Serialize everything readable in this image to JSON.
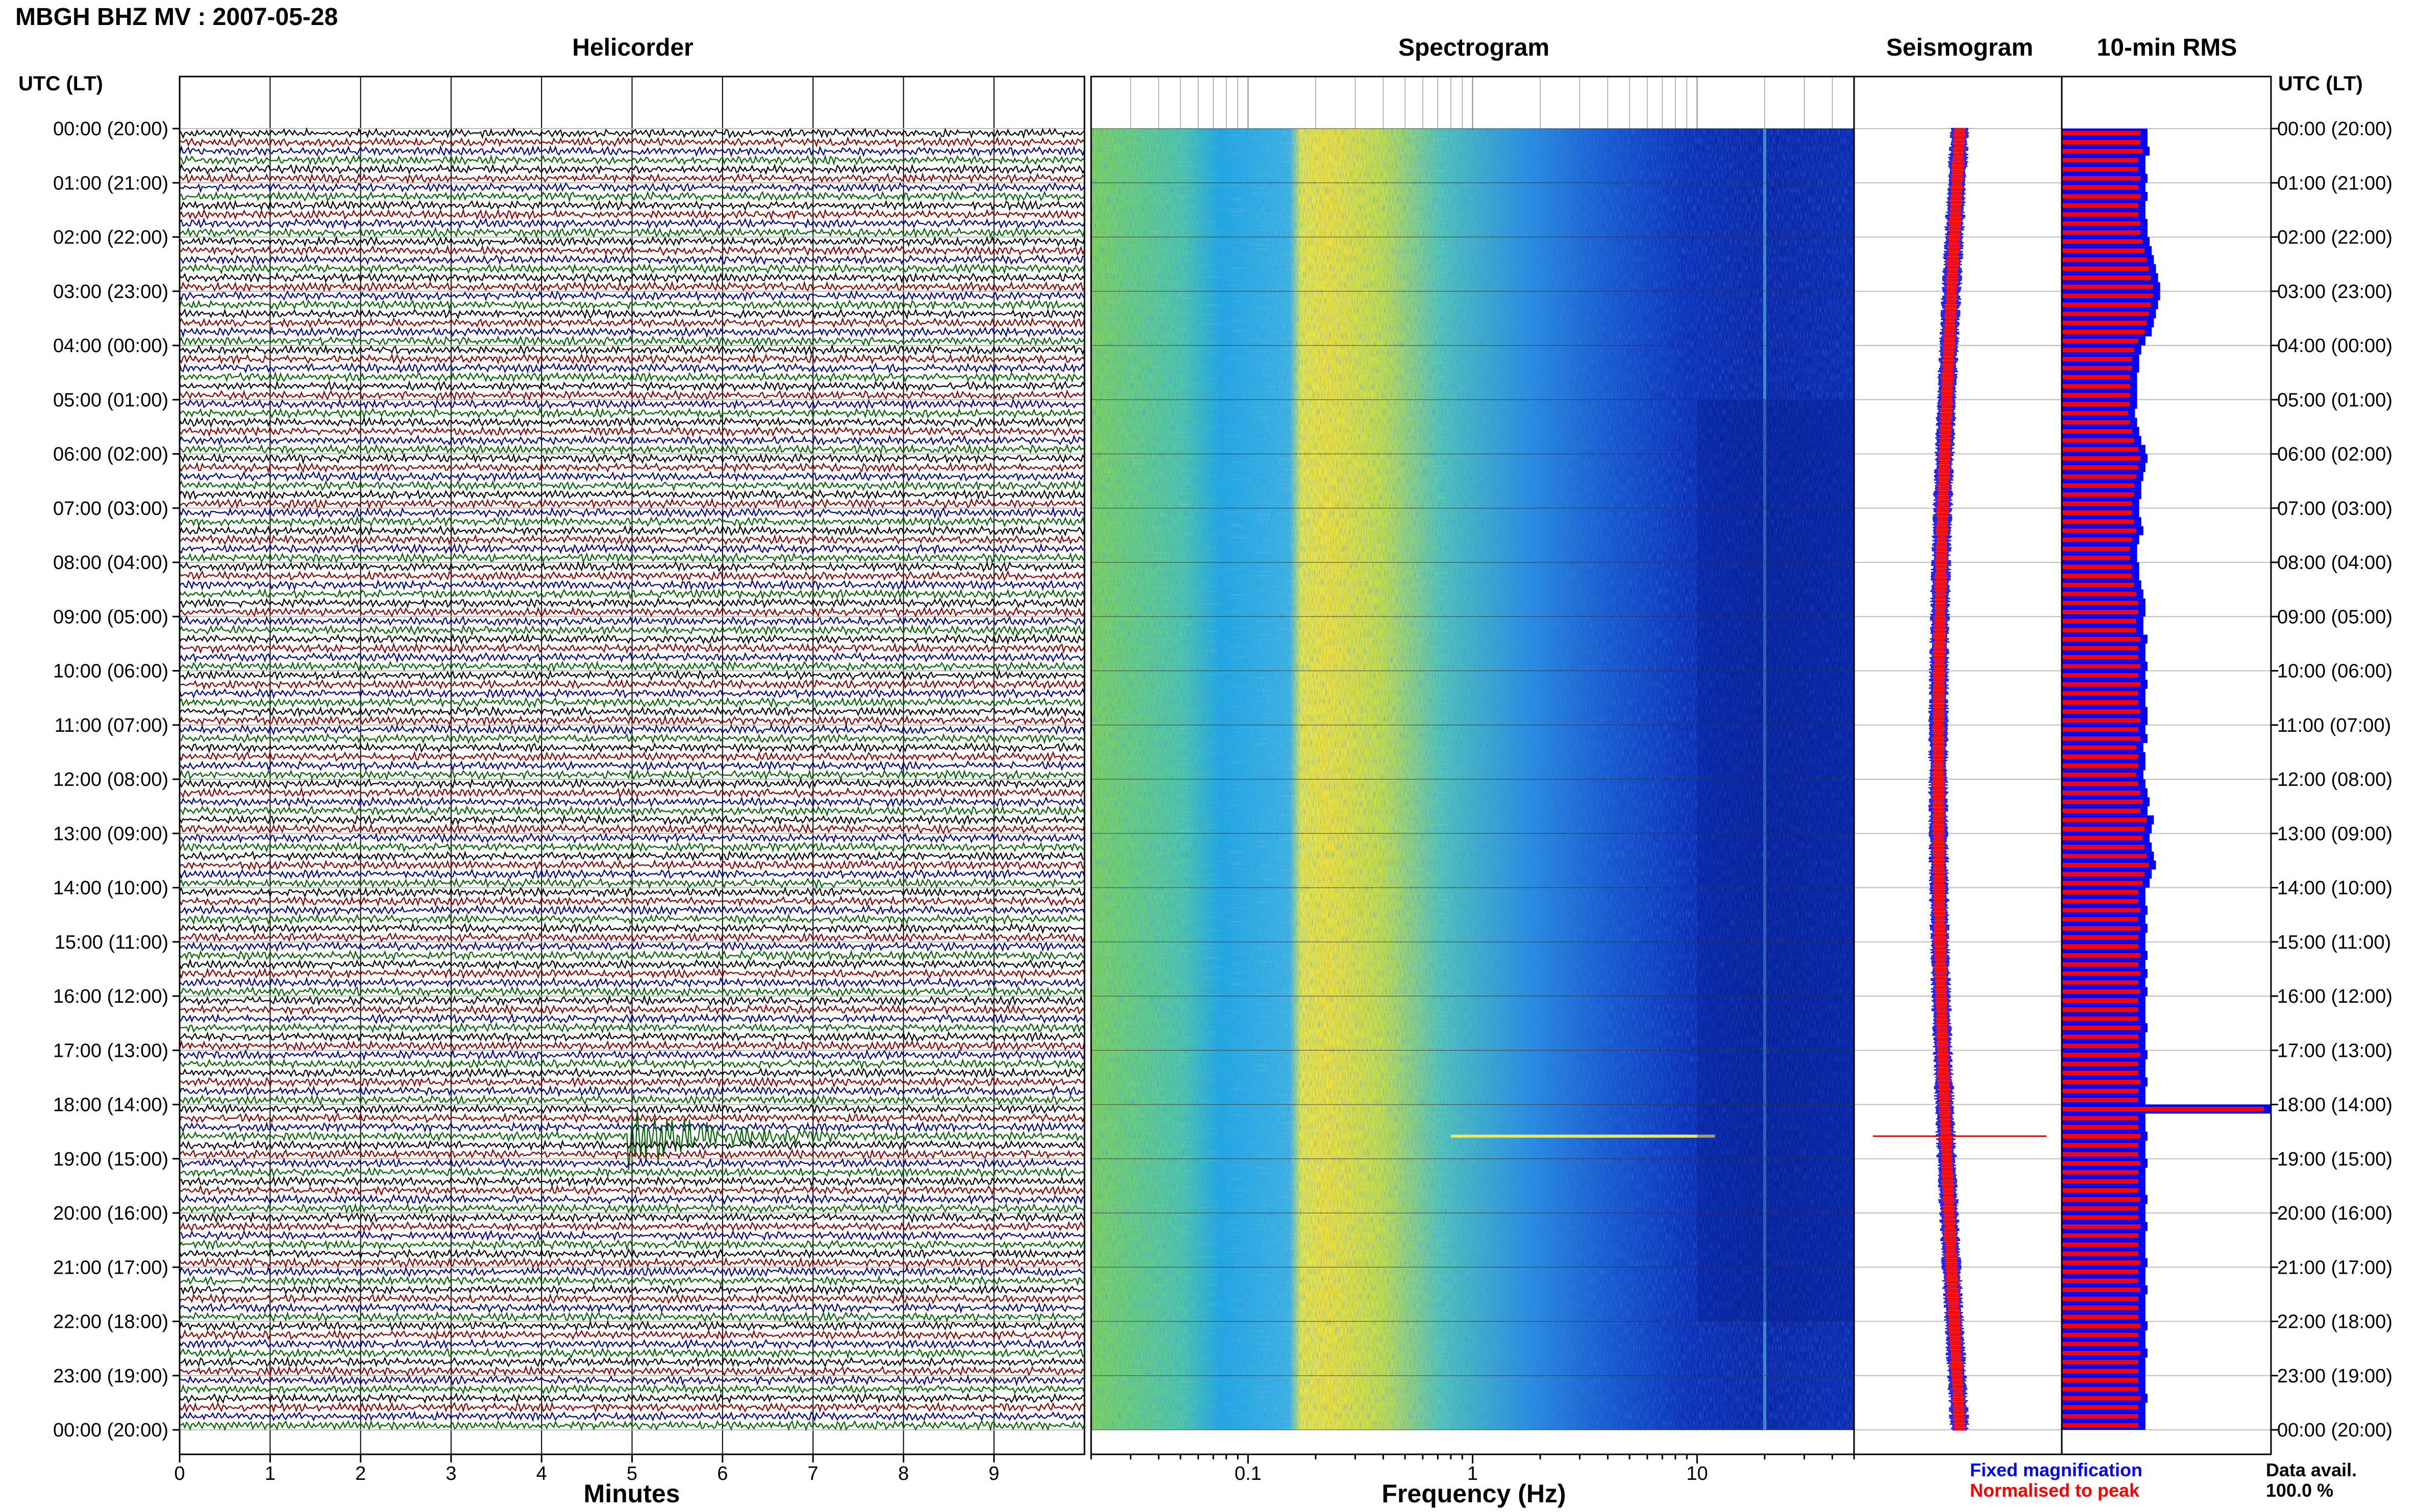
{
  "header": {
    "title": "MBGH BHZ MV : 2007-05-28",
    "utc_label_left": "UTC (LT)",
    "utc_label_right": "UTC (LT)"
  },
  "panels": {
    "helicorder": "Helicorder",
    "spectrogram": "Spectrogram",
    "seismogram": "Seismogram",
    "rms": "10-min RMS"
  },
  "footer": {
    "minutes_label": "Minutes",
    "frequency_label": "Frequency (Hz)",
    "legend_fixed": "Fixed magnification",
    "legend_normalised": "Normalised to peak",
    "data_avail_label": "Data avail.",
    "data_avail_value": "100.0 %"
  },
  "colors": {
    "trace_colors": [
      "#000000",
      "#8b0000",
      "#00008b",
      "#006400"
    ],
    "fixed_magnification": "#0000ff",
    "normalised_to_peak": "#ff0000"
  },
  "chart_data": [
    {
      "type": "line",
      "panel": "helicorder",
      "xlabel": "Minutes",
      "x_ticks": [
        "0",
        "1",
        "2",
        "3",
        "4",
        "5",
        "6",
        "7",
        "8",
        "9"
      ],
      "xlim": [
        0,
        10
      ],
      "time_labels": [
        "00:00 (20:00)",
        "01:00 (21:00)",
        "02:00 (22:00)",
        "03:00 (23:00)",
        "04:00 (00:00)",
        "05:00 (01:00)",
        "06:00 (02:00)",
        "07:00 (03:00)",
        "08:00 (04:00)",
        "09:00 (05:00)",
        "10:00 (06:00)",
        "11:00 (07:00)",
        "12:00 (08:00)",
        "13:00 (09:00)",
        "14:00 (10:00)",
        "15:00 (11:00)",
        "16:00 (12:00)",
        "17:00 (13:00)",
        "18:00 (14:00)",
        "19:00 (15:00)",
        "20:00 (16:00)",
        "21:00 (17:00)",
        "22:00 (18:00)",
        "23:00 (19:00)",
        "00:00 (20:00)"
      ],
      "traces_per_hour": 6,
      "event": {
        "hour": 18,
        "trace": 3,
        "start_minute": 4.95,
        "end_minute": 7.2
      }
    },
    {
      "type": "heatmap",
      "panel": "spectrogram",
      "xlabel": "Frequency (Hz)",
      "x_scale": "log",
      "x_ticks": [
        "0.1",
        "1",
        "10"
      ],
      "xlim": [
        0.02,
        50
      ]
    },
    {
      "type": "line",
      "panel": "seismogram"
    },
    {
      "type": "bar",
      "panel": "rms",
      "fixed_magnification": [
        0.41,
        0.41,
        0.42,
        0.4,
        0.4,
        0.41,
        0.4,
        0.41,
        0.4,
        0.4,
        0.41,
        0.41,
        0.42,
        0.43,
        0.44,
        0.45,
        0.46,
        0.47,
        0.47,
        0.46,
        0.45,
        0.44,
        0.43,
        0.4,
        0.38,
        0.37,
        0.37,
        0.36,
        0.36,
        0.36,
        0.36,
        0.35,
        0.36,
        0.37,
        0.38,
        0.4,
        0.41,
        0.4,
        0.39,
        0.38,
        0.38,
        0.37,
        0.37,
        0.38,
        0.39,
        0.37,
        0.36,
        0.36,
        0.37,
        0.37,
        0.38,
        0.39,
        0.4,
        0.4,
        0.39,
        0.39,
        0.41,
        0.4,
        0.4,
        0.41,
        0.4,
        0.41,
        0.4,
        0.4,
        0.41,
        0.41,
        0.4,
        0.41,
        0.39,
        0.4,
        0.4,
        0.39,
        0.4,
        0.41,
        0.42,
        0.41,
        0.44,
        0.43,
        0.42,
        0.43,
        0.44,
        0.45,
        0.43,
        0.42,
        0.4,
        0.4,
        0.41,
        0.4,
        0.41,
        0.4,
        0.4,
        0.41,
        0.4,
        0.41,
        0.4,
        0.41,
        0.4,
        0.4,
        0.4,
        0.41,
        0.4,
        0.4,
        0.41,
        0.4,
        0.4,
        0.41,
        0.4,
        0.4,
        1.0,
        0.4,
        0.4,
        0.41,
        0.4,
        0.4,
        0.41,
        0.4,
        0.4,
        0.4,
        0.41,
        0.4,
        0.4,
        0.41,
        0.4,
        0.4,
        0.4,
        0.41,
        0.4,
        0.4,
        0.41,
        0.4,
        0.4,
        0.4,
        0.41,
        0.4,
        0.4,
        0.41,
        0.4,
        0.4,
        0.4,
        0.4,
        0.41,
        0.4,
        0.4,
        0.4
      ]
    }
  ]
}
